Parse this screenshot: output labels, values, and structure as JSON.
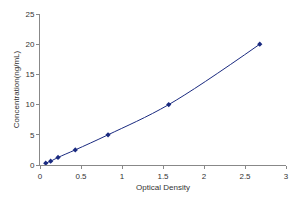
{
  "chart_data": {
    "type": "line",
    "x": [
      0.07,
      0.13,
      0.22,
      0.43,
      0.83,
      1.57,
      2.68
    ],
    "values": [
      0.31,
      0.63,
      1.25,
      2.5,
      5,
      10,
      20
    ],
    "x_label": "Optical Density",
    "y_label": "Concentration(ng/mL)",
    "color": "#1a2a80",
    "marker": "diamond",
    "line_style": "solid",
    "xlim": [
      0,
      3
    ],
    "xticks": [
      0,
      0.5,
      1,
      1.5,
      2,
      2.5,
      3
    ],
    "ylim": [
      0,
      25
    ],
    "yticks": [
      0,
      5,
      10,
      15,
      20,
      25
    ],
    "grid": false
  }
}
